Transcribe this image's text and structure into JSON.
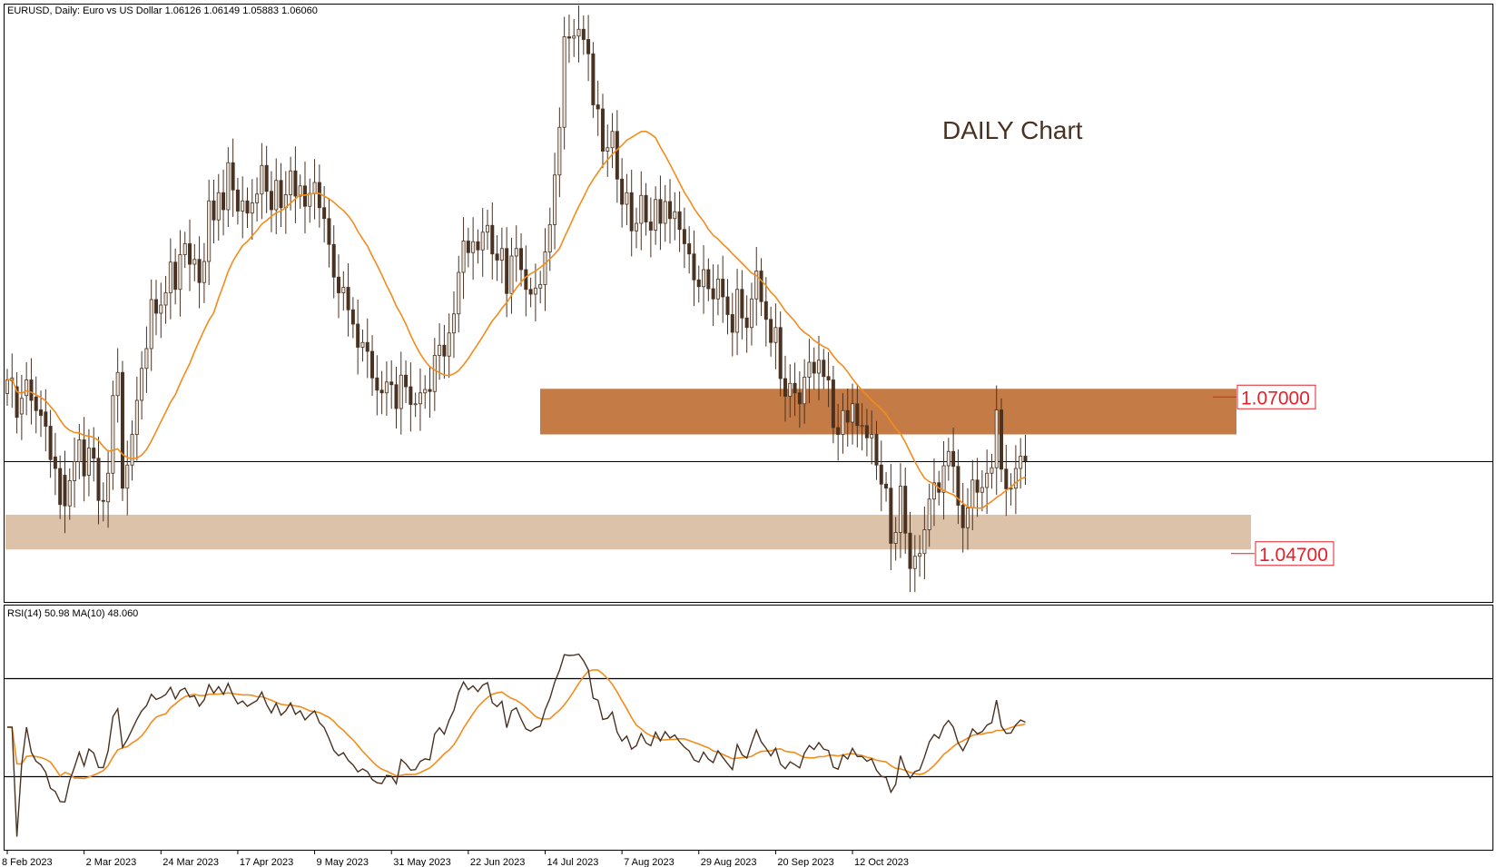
{
  "main_header": "EURUSD, Daily:  Euro vs US Dollar  1.06126 1.06149 1.05883 1.06060",
  "rsi_header": "RSI(14) 50.98 MA(10) 48.060",
  "annotation": "DAILY Chart",
  "colors": {
    "bull_body": "#e9e3d9",
    "bear_body": "#4a3222",
    "wick": "#4a3222",
    "ma": "#f28c1d",
    "rsi": "#4a3222",
    "zone_upper": "#c47b46",
    "zone_lower": "#dcc2a9",
    "level_label": "#e4202a"
  },
  "chart_data": {
    "type": "candlestick",
    "symbol": "EURUSD",
    "timeframe": "Daily",
    "x_tick_labels": [
      "8 Feb 2023",
      "2 Mar 2023",
      "24 Mar 2023",
      "17 Apr 2023",
      "9 May 2023",
      "31 May 2023",
      "22 Jun 2023",
      "14 Jul 2023",
      "7 Aug 2023",
      "29 Aug 2023",
      "20 Sep 2023",
      "12 Oct 2023"
    ],
    "last_price": 1.0606,
    "levels": [
      {
        "label": "1.07000",
        "value": 1.07,
        "zone": [
          1.0645,
          1.0712
        ],
        "role": "resistance"
      },
      {
        "label": "1.04700",
        "value": 1.047,
        "zone": [
          1.0476,
          1.0527
        ],
        "role": "support"
      }
    ],
    "price_range": [
      1.0403,
      1.1275
    ],
    "candles": [
      {
        "o": 1.0705,
        "c": 1.0725
      },
      {
        "o": 1.0724,
        "c": 1.0728
      },
      {
        "o": 1.0715,
        "c": 1.067
      },
      {
        "o": 1.0675,
        "c": 1.0698
      },
      {
        "o": 1.0702,
        "c": 1.0725
      },
      {
        "o": 1.0725,
        "c": 1.0695
      },
      {
        "o": 1.07,
        "c": 1.068
      },
      {
        "o": 1.0681,
        "c": 1.0673
      },
      {
        "o": 1.0678,
        "c": 1.0657
      },
      {
        "o": 1.0657,
        "c": 1.0608
      },
      {
        "o": 1.0612,
        "c": 1.0595
      },
      {
        "o": 1.0595,
        "c": 1.0542
      },
      {
        "o": 1.0585,
        "c": 1.054
      },
      {
        "o": 1.054,
        "c": 1.0577
      },
      {
        "o": 1.0577,
        "c": 1.0605
      },
      {
        "o": 1.0605,
        "c": 1.0637
      },
      {
        "o": 1.0637,
        "c": 1.0584
      },
      {
        "o": 1.0585,
        "c": 1.0625
      },
      {
        "o": 1.0625,
        "c": 1.061
      },
      {
        "o": 1.061,
        "c": 1.0548
      },
      {
        "o": 1.0548,
        "c": 1.0547
      },
      {
        "o": 1.0546,
        "c": 1.0588
      },
      {
        "o": 1.0588,
        "c": 1.0702
      },
      {
        "o": 1.0702,
        "c": 1.0736
      },
      {
        "o": 1.0736,
        "c": 1.0566
      },
      {
        "o": 1.0566,
        "c": 1.06
      },
      {
        "o": 1.06,
        "c": 1.0645
      },
      {
        "o": 1.0645,
        "c": 1.0695
      },
      {
        "o": 1.0695,
        "c": 1.0742
      },
      {
        "o": 1.0742,
        "c": 1.0771
      },
      {
        "o": 1.0771,
        "c": 1.0843
      },
      {
        "o": 1.0843,
        "c": 1.0823
      },
      {
        "o": 1.0823,
        "c": 1.0835
      },
      {
        "o": 1.0835,
        "c": 1.0853
      },
      {
        "o": 1.0853,
        "c": 1.0898
      },
      {
        "o": 1.0898,
        "c": 1.0858
      },
      {
        "o": 1.0858,
        "c": 1.0909
      },
      {
        "o": 1.0909,
        "c": 1.0925
      },
      {
        "o": 1.0925,
        "c": 1.0895
      },
      {
        "o": 1.0895,
        "c": 1.0902
      },
      {
        "o": 1.0902,
        "c": 1.0868
      },
      {
        "o": 1.0868,
        "c": 1.0899
      },
      {
        "o": 1.0899,
        "c": 1.0988
      },
      {
        "o": 1.0988,
        "c": 1.096
      },
      {
        "o": 1.096,
        "c": 1.1
      },
      {
        "o": 1.1,
        "c": 1.0975
      },
      {
        "o": 1.0975,
        "c": 1.1044
      },
      {
        "o": 1.1044,
        "c": 1.1004
      },
      {
        "o": 1.1004,
        "c": 1.0973
      },
      {
        "o": 1.0973,
        "c": 1.0988
      },
      {
        "o": 1.0988,
        "c": 1.097
      },
      {
        "o": 1.097,
        "c": 1.0985
      },
      {
        "o": 1.0985,
        "c": 1.0998
      },
      {
        "o": 1.0998,
        "c": 1.104
      },
      {
        "o": 1.104,
        "c": 1.1002
      },
      {
        "o": 1.1002,
        "c": 1.0975
      },
      {
        "o": 1.0975,
        "c": 1.1018
      },
      {
        "o": 1.1018,
        "c": 1.0978
      },
      {
        "o": 1.0978,
        "c": 1.0997
      },
      {
        "o": 1.0997,
        "c": 1.1032
      },
      {
        "o": 1.1032,
        "c": 1.0995
      },
      {
        "o": 1.0995,
        "c": 1.101
      },
      {
        "o": 1.101,
        "c": 1.098
      },
      {
        "o": 1.098,
        "c": 1.0999
      },
      {
        "o": 1.0999,
        "c": 1.1015
      },
      {
        "o": 1.1015,
        "c": 1.0978
      },
      {
        "o": 1.0978,
        "c": 1.0962
      },
      {
        "o": 1.0962,
        "c": 1.0924
      },
      {
        "o": 1.0924,
        "c": 1.0876
      },
      {
        "o": 1.0876,
        "c": 1.0853
      },
      {
        "o": 1.0853,
        "c": 1.0861
      },
      {
        "o": 1.0861,
        "c": 1.0828
      },
      {
        "o": 1.0828,
        "c": 1.0807
      },
      {
        "o": 1.0807,
        "c": 1.0773
      },
      {
        "o": 1.0773,
        "c": 1.078
      },
      {
        "o": 1.078,
        "c": 1.0767
      },
      {
        "o": 1.0767,
        "c": 1.0728
      },
      {
        "o": 1.0728,
        "c": 1.071
      },
      {
        "o": 1.071,
        "c": 1.0706
      },
      {
        "o": 1.0706,
        "c": 1.0722
      },
      {
        "o": 1.0722,
        "c": 1.0718
      },
      {
        "o": 1.0718,
        "c": 1.0683
      },
      {
        "o": 1.0683,
        "c": 1.0732
      },
      {
        "o": 1.0732,
        "c": 1.0715
      },
      {
        "o": 1.0715,
        "c": 1.0689
      },
      {
        "o": 1.0689,
        "c": 1.069
      },
      {
        "o": 1.069,
        "c": 1.0706
      },
      {
        "o": 1.0706,
        "c": 1.0711
      },
      {
        "o": 1.0711,
        "c": 1.0708
      },
      {
        "o": 1.0708,
        "c": 1.0761
      },
      {
        "o": 1.0761,
        "c": 1.0776
      },
      {
        "o": 1.0776,
        "c": 1.076
      },
      {
        "o": 1.076,
        "c": 1.0794
      },
      {
        "o": 1.0794,
        "c": 1.0822
      },
      {
        "o": 1.0822,
        "c": 1.0883
      },
      {
        "o": 1.0883,
        "c": 1.0929
      },
      {
        "o": 1.0929,
        "c": 1.0912
      },
      {
        "o": 1.0912,
        "c": 1.0928
      },
      {
        "o": 1.0928,
        "c": 1.0916
      },
      {
        "o": 1.0916,
        "c": 1.0942
      },
      {
        "o": 1.0942,
        "c": 1.0952
      },
      {
        "o": 1.0952,
        "c": 1.091
      },
      {
        "o": 1.091,
        "c": 1.0901
      },
      {
        "o": 1.0901,
        "c": 1.0918
      },
      {
        "o": 1.0918,
        "c": 1.0852
      },
      {
        "o": 1.0852,
        "c": 1.0907
      },
      {
        "o": 1.0907,
        "c": 1.0918
      },
      {
        "o": 1.0918,
        "c": 1.0887
      },
      {
        "o": 1.0887,
        "c": 1.0858
      },
      {
        "o": 1.0858,
        "c": 1.0851
      },
      {
        "o": 1.0851,
        "c": 1.086
      },
      {
        "o": 1.086,
        "c": 1.0865
      },
      {
        "o": 1.0865,
        "c": 1.0913
      },
      {
        "o": 1.0913,
        "c": 1.0953
      },
      {
        "o": 1.0953,
        "c": 1.1026
      },
      {
        "o": 1.1026,
        "c": 1.1096
      },
      {
        "o": 1.1096,
        "c": 1.1229
      },
      {
        "o": 1.1229,
        "c": 1.1227
      },
      {
        "o": 1.1227,
        "c": 1.123
      },
      {
        "o": 1.123,
        "c": 1.124
      },
      {
        "o": 1.124,
        "c": 1.1225
      },
      {
        "o": 1.1225,
        "c": 1.1204
      },
      {
        "o": 1.1204,
        "c": 1.1129
      },
      {
        "o": 1.1129,
        "c": 1.1123
      },
      {
        "o": 1.1123,
        "c": 1.1061
      },
      {
        "o": 1.1061,
        "c": 1.1066
      },
      {
        "o": 1.1066,
        "c": 1.109
      },
      {
        "o": 1.109,
        "c": 1.102
      },
      {
        "o": 1.102,
        "c": 1.0983
      },
      {
        "o": 1.0983,
        "c": 1.1
      },
      {
        "o": 1.1,
        "c": 1.0944
      },
      {
        "o": 1.0944,
        "c": 1.0955
      },
      {
        "o": 1.0955,
        "c": 1.0996
      },
      {
        "o": 1.0996,
        "c": 1.0957
      },
      {
        "o": 1.0957,
        "c": 1.0945
      },
      {
        "o": 1.0945,
        "c": 1.099
      },
      {
        "o": 1.099,
        "c": 1.0955
      },
      {
        "o": 1.0955,
        "c": 1.0987
      },
      {
        "o": 1.0987,
        "c": 1.0962
      },
      {
        "o": 1.0962,
        "c": 1.0972
      },
      {
        "o": 1.0972,
        "c": 1.0946
      },
      {
        "o": 1.0946,
        "c": 1.0925
      },
      {
        "o": 1.0925,
        "c": 1.091
      },
      {
        "o": 1.091,
        "c": 1.0872
      },
      {
        "o": 1.0872,
        "c": 1.0862
      },
      {
        "o": 1.0862,
        "c": 1.0887
      },
      {
        "o": 1.0887,
        "c": 1.0859
      },
      {
        "o": 1.0859,
        "c": 1.0844
      },
      {
        "o": 1.0844,
        "c": 1.0873
      },
      {
        "o": 1.0873,
        "c": 1.0847
      },
      {
        "o": 1.0847,
        "c": 1.0821
      },
      {
        "o": 1.0821,
        "c": 1.0795
      },
      {
        "o": 1.0795,
        "c": 1.0858
      },
      {
        "o": 1.0858,
        "c": 1.0816
      },
      {
        "o": 1.0816,
        "c": 1.0802
      },
      {
        "o": 1.0802,
        "c": 1.0844
      },
      {
        "o": 1.0844,
        "c": 1.0885
      },
      {
        "o": 1.0885,
        "c": 1.084
      },
      {
        "o": 1.084,
        "c": 1.0814
      },
      {
        "o": 1.0814,
        "c": 1.078
      },
      {
        "o": 1.078,
        "c": 1.0802
      },
      {
        "o": 1.0802,
        "c": 1.0727
      },
      {
        "o": 1.0727,
        "c": 1.0701
      },
      {
        "o": 1.0701,
        "c": 1.072
      },
      {
        "o": 1.072,
        "c": 1.0706
      },
      {
        "o": 1.0706,
        "c": 1.069
      },
      {
        "o": 1.069,
        "c": 1.0729
      },
      {
        "o": 1.0729,
        "c": 1.0751
      },
      {
        "o": 1.0751,
        "c": 1.0735
      },
      {
        "o": 1.0735,
        "c": 1.0754
      },
      {
        "o": 1.0754,
        "c": 1.073
      },
      {
        "o": 1.073,
        "c": 1.0725
      },
      {
        "o": 1.0725,
        "c": 1.0655
      },
      {
        "o": 1.0655,
        "c": 1.0645
      },
      {
        "o": 1.0645,
        "c": 1.068
      },
      {
        "o": 1.068,
        "c": 1.0663
      },
      {
        "o": 1.0663,
        "c": 1.069
      },
      {
        "o": 1.069,
        "c": 1.0658
      },
      {
        "o": 1.0658,
        "c": 1.0658
      },
      {
        "o": 1.0658,
        "c": 1.064
      },
      {
        "o": 1.064,
        "c": 1.0645
      },
      {
        "o": 1.0645,
        "c": 1.06
      },
      {
        "o": 1.06,
        "c": 1.0572
      },
      {
        "o": 1.0572,
        "c": 1.0566
      },
      {
        "o": 1.0566,
        "c": 1.0485
      },
      {
        "o": 1.0485,
        "c": 1.0501
      },
      {
        "o": 1.0501,
        "c": 1.0569
      },
      {
        "o": 1.0569,
        "c": 1.05
      },
      {
        "o": 1.05,
        "c": 1.0448
      },
      {
        "o": 1.0448,
        "c": 1.0466
      },
      {
        "o": 1.0466,
        "c": 1.047
      },
      {
        "o": 1.047,
        "c": 1.0505
      },
      {
        "o": 1.0505,
        "c": 1.055
      },
      {
        "o": 1.055,
        "c": 1.0574
      },
      {
        "o": 1.0574,
        "c": 1.056
      },
      {
        "o": 1.056,
        "c": 1.0599
      },
      {
        "o": 1.0599,
        "c": 1.062
      },
      {
        "o": 1.062,
        "c": 1.0598
      },
      {
        "o": 1.0598,
        "c": 1.0541
      },
      {
        "o": 1.0541,
        "c": 1.0508
      },
      {
        "o": 1.0508,
        "c": 1.0537
      },
      {
        "o": 1.0537,
        "c": 1.0578
      },
      {
        "o": 1.0578,
        "c": 1.056
      },
      {
        "o": 1.056,
        "c": 1.0567
      },
      {
        "o": 1.0567,
        "c": 1.0588
      },
      {
        "o": 1.0588,
        "c": 1.0596
      },
      {
        "o": 1.0596,
        "c": 1.0681
      },
      {
        "o": 1.0681,
        "c": 1.0594
      },
      {
        "o": 1.0594,
        "c": 1.0565
      },
      {
        "o": 1.0565,
        "c": 1.0566
      },
      {
        "o": 1.0566,
        "c": 1.0595
      },
      {
        "o": 1.0595,
        "c": 1.0613
      },
      {
        "o": 1.0613,
        "c": 1.0606
      }
    ],
    "ma_period_label": "MA",
    "rsi": {
      "name": "RSI(14)",
      "value": 50.98,
      "ma_label": "MA(10)",
      "ma_value": 48.06,
      "levels": [
        70,
        30
      ],
      "range": [
        0,
        100
      ]
    }
  }
}
